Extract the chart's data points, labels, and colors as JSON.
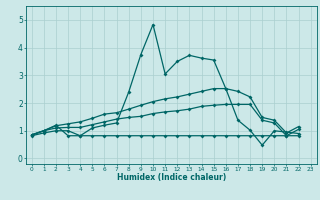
{
  "xlabel": "Humidex (Indice chaleur)",
  "xlim": [
    -0.5,
    23.5
  ],
  "ylim": [
    -0.2,
    5.5
  ],
  "xticks": [
    0,
    1,
    2,
    3,
    4,
    5,
    6,
    7,
    8,
    9,
    10,
    11,
    12,
    13,
    14,
    15,
    16,
    17,
    18,
    19,
    20,
    21,
    22,
    23
  ],
  "yticks": [
    0,
    1,
    2,
    3,
    4,
    5
  ],
  "bg_color": "#cce8e8",
  "grid_color": "#aacfcf",
  "line_color": "#006666",
  "s1_x": [
    0,
    1,
    2,
    3,
    4,
    5,
    6,
    7,
    8,
    9,
    10,
    11,
    12,
    13,
    14,
    15,
    16,
    17,
    18,
    19,
    20,
    21,
    22
  ],
  "s1_y": [
    0.85,
    1.0,
    1.2,
    0.82,
    0.82,
    1.1,
    1.2,
    1.28,
    2.4,
    3.75,
    4.83,
    3.05,
    3.5,
    3.72,
    3.62,
    3.55,
    2.52,
    1.38,
    1.02,
    0.48,
    1.0,
    0.95,
    0.9
  ],
  "s2_x": [
    0,
    1,
    2,
    3,
    4,
    5,
    6,
    7,
    8,
    9,
    10,
    11,
    12,
    13,
    14,
    15,
    16,
    17,
    18,
    19,
    20,
    21,
    22
  ],
  "s2_y": [
    0.85,
    1.0,
    1.18,
    1.25,
    1.32,
    1.45,
    1.6,
    1.65,
    1.78,
    1.92,
    2.05,
    2.15,
    2.22,
    2.32,
    2.42,
    2.52,
    2.52,
    2.42,
    2.22,
    1.48,
    1.38,
    0.92,
    1.15
  ],
  "s3_x": [
    0,
    1,
    2,
    3,
    4,
    5,
    6,
    7,
    8,
    9,
    10,
    11,
    12,
    13,
    14,
    15,
    16,
    17,
    18,
    19,
    20,
    21,
    22
  ],
  "s3_y": [
    0.85,
    1.0,
    1.1,
    1.12,
    1.12,
    1.22,
    1.32,
    1.42,
    1.48,
    1.52,
    1.62,
    1.68,
    1.72,
    1.78,
    1.88,
    1.92,
    1.95,
    1.95,
    1.95,
    1.38,
    1.28,
    0.82,
    1.05
  ],
  "s4_x": [
    0,
    1,
    2,
    3,
    4,
    5,
    6,
    7,
    8,
    9,
    10,
    11,
    12,
    13,
    14,
    15,
    16,
    17,
    18,
    19,
    20,
    21,
    22
  ],
  "s4_y": [
    0.82,
    0.92,
    1.0,
    1.0,
    0.82,
    0.82,
    0.82,
    0.82,
    0.82,
    0.82,
    0.82,
    0.82,
    0.82,
    0.82,
    0.82,
    0.82,
    0.82,
    0.82,
    0.82,
    0.82,
    0.82,
    0.82,
    0.82
  ]
}
